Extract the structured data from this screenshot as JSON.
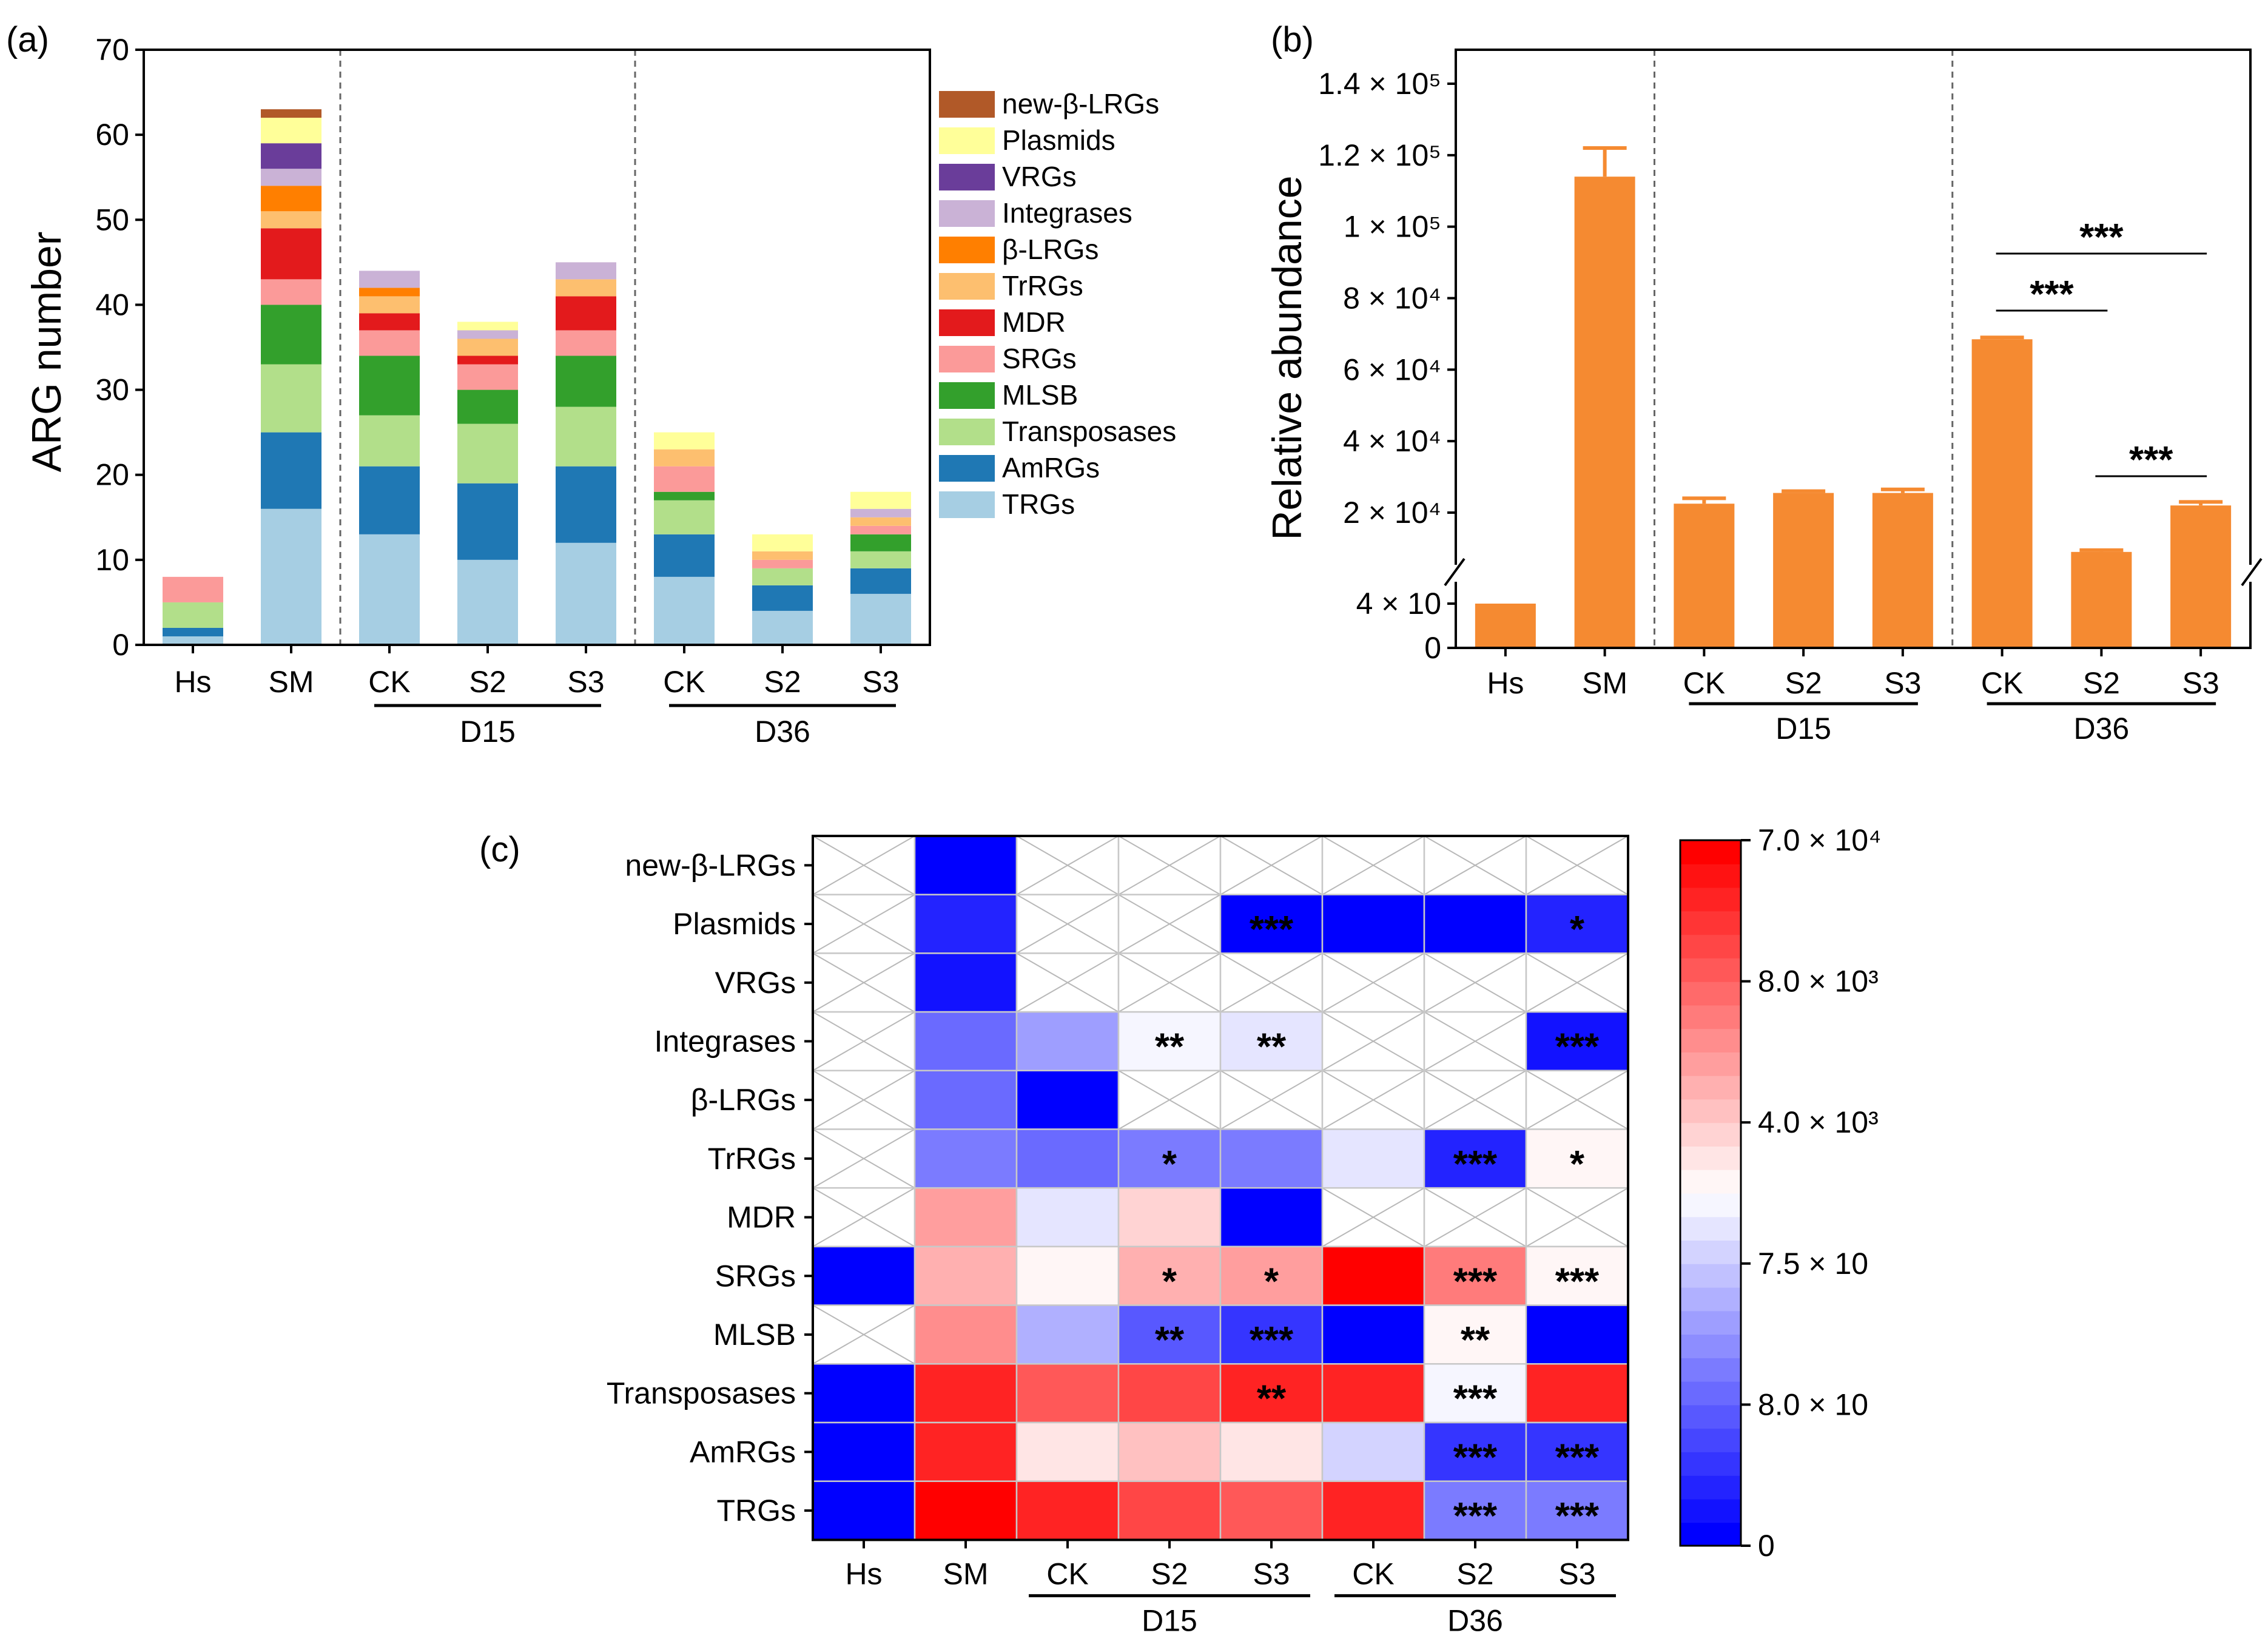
{
  "chart_data": [
    {
      "panel": "(a)",
      "type": "bar",
      "stacked": true,
      "ylabel": "ARG number",
      "ylim": [
        0,
        70
      ],
      "yticks": [
        0,
        10,
        20,
        30,
        40,
        50,
        60,
        70
      ],
      "categories": [
        "Hs",
        "SM",
        "CK",
        "S2",
        "S3",
        "CK",
        "S2",
        "S3"
      ],
      "groups": [
        {
          "label": "D15",
          "members": [
            2,
            4
          ]
        },
        {
          "label": "D36",
          "members": [
            5,
            7
          ]
        }
      ],
      "series": [
        {
          "name": "TRGs",
          "color": "#a6cee3",
          "values": [
            1,
            16,
            13,
            10,
            12,
            8,
            4,
            6
          ]
        },
        {
          "name": "AmRGs",
          "color": "#1f78b4",
          "values": [
            1,
            9,
            8,
            9,
            9,
            5,
            3,
            3
          ]
        },
        {
          "name": "Transposases",
          "color": "#b2df8a",
          "values": [
            3,
            8,
            6,
            7,
            7,
            4,
            2,
            2
          ]
        },
        {
          "name": "MLSB",
          "color": "#33a02c",
          "values": [
            0,
            7,
            7,
            4,
            6,
            1,
            0,
            2
          ]
        },
        {
          "name": "SRGs",
          "color": "#fb9a99",
          "values": [
            3,
            3,
            3,
            3,
            3,
            3,
            1,
            1
          ]
        },
        {
          "name": "MDR",
          "color": "#e31a1c",
          "values": [
            0,
            6,
            2,
            1,
            4,
            0,
            0,
            0
          ]
        },
        {
          "name": "TrRGs",
          "color": "#fdbf6f",
          "values": [
            0,
            2,
            2,
            2,
            2,
            2,
            1,
            1
          ]
        },
        {
          "name": "β-LRGs",
          "color": "#ff7f00",
          "values": [
            0,
            3,
            1,
            0,
            0,
            0,
            0,
            0
          ]
        },
        {
          "name": "Integrases",
          "color": "#cab2d6",
          "values": [
            0,
            2,
            2,
            1,
            2,
            0,
            0,
            1
          ]
        },
        {
          "name": "VRGs",
          "color": "#6a3d9a",
          "values": [
            0,
            3,
            0,
            0,
            0,
            0,
            0,
            0
          ]
        },
        {
          "name": "Plasmids",
          "color": "#ffff99",
          "values": [
            0,
            3,
            0,
            1,
            0,
            2,
            2,
            2
          ]
        },
        {
          "name": "new-β-LRGs",
          "color": "#b15928",
          "values": [
            0,
            1,
            0,
            0,
            0,
            0,
            0,
            0
          ]
        }
      ],
      "legend_order": [
        "new-β-LRGs",
        "Plasmids",
        "VRGs",
        "Integrases",
        "β-LRGs",
        "TrRGs",
        "MDR",
        "SRGs",
        "MLSB",
        "Transposases",
        "AmRGs",
        "TRGs"
      ],
      "legend_placement": "right"
    },
    {
      "panel": "(b)",
      "type": "bar",
      "ylabel": "Relative abundance",
      "bar_color": "#f58a31",
      "axis_break": true,
      "yticks": [
        {
          "value": 0,
          "label": "0"
        },
        {
          "value": 40,
          "label": "4 × 10"
        },
        {
          "value": 20000,
          "label": "2 × 10⁴"
        },
        {
          "value": 40000,
          "label": "4 × 10⁴"
        },
        {
          "value": 60000,
          "label": "6 × 10⁴"
        },
        {
          "value": 80000,
          "label": "8 × 10⁴"
        },
        {
          "value": 100000,
          "label": "1 × 10⁵"
        },
        {
          "value": 120000,
          "label": "1.2 × 10⁵"
        },
        {
          "value": 140000,
          "label": "1.4 × 10⁵"
        }
      ],
      "categories": [
        "Hs",
        "SM",
        "CK",
        "S2",
        "S3",
        "CK",
        "S2",
        "S3"
      ],
      "values": [
        40,
        114000,
        22500,
        25500,
        25500,
        68500,
        9000,
        22000
      ],
      "errors": [
        0,
        8000,
        1500,
        500,
        1000,
        500,
        500,
        1000
      ],
      "groups": [
        {
          "label": "D15",
          "members": [
            2,
            4
          ]
        },
        {
          "label": "D36",
          "members": [
            5,
            7
          ]
        }
      ],
      "significance": [
        {
          "from": 5,
          "to": 7,
          "label": "***"
        },
        {
          "from": 5,
          "to": 6,
          "label": "***"
        },
        {
          "from": 6,
          "to": 7,
          "label": "***"
        }
      ]
    },
    {
      "panel": "(c)",
      "type": "heatmap",
      "rows": [
        "new-β-LRGs",
        "Plasmids",
        "VRGs",
        "Integrases",
        "β-LRGs",
        "TrRGs",
        "MDR",
        "SRGs",
        "MLSB",
        "Transposases",
        "AmRGs",
        "TRGs"
      ],
      "columns": [
        "Hs",
        "SM",
        "CK",
        "S2",
        "S3",
        "CK",
        "S2",
        "S3"
      ],
      "groups": [
        {
          "label": "D15",
          "members": [
            2,
            4
          ]
        },
        {
          "label": "D36",
          "members": [
            5,
            7
          ]
        }
      ],
      "colorbar": {
        "ticks": [
          {
            "value": 0,
            "label": "0"
          },
          {
            "value": 0.2,
            "label": "8.0 × 10"
          },
          {
            "value": 0.4,
            "label": "7.5 × 10"
          },
          {
            "value": 0.6,
            "label": "4.0 × 10³"
          },
          {
            "value": 0.8,
            "label": "8.0 × 10³"
          },
          {
            "value": 1.0,
            "label": "7.0 × 10⁴"
          }
        ],
        "low_color": "#0000ff",
        "mid_color": "#ffffff",
        "high_color": "#ff0000",
        "steps": 30
      },
      "note": "values are normalized color-scale levels (0 = bottom of color bar, 1 = top); null = not detected (crossed cell)",
      "values": [
        [
          null,
          0.0,
          null,
          null,
          null,
          null,
          null,
          null
        ],
        [
          null,
          0.07,
          null,
          null,
          0.03,
          0.03,
          0.03,
          0.08
        ],
        [
          null,
          0.05,
          null,
          null,
          null,
          null,
          null,
          null
        ],
        [
          null,
          0.22,
          0.3,
          0.49,
          0.45,
          null,
          null,
          0.05
        ],
        [
          null,
          0.23,
          0.0,
          null,
          null,
          null,
          null,
          null
        ],
        [
          null,
          0.25,
          0.2,
          0.24,
          0.24,
          0.44,
          0.07,
          0.5
        ],
        [
          null,
          0.68,
          0.44,
          0.58,
          0.02,
          null,
          null,
          null
        ],
        [
          0.03,
          0.66,
          0.53,
          0.66,
          0.68,
          0.97,
          0.74,
          0.5
        ],
        [
          null,
          0.72,
          0.35,
          0.18,
          0.1,
          0.01,
          0.5,
          0.0
        ],
        [
          0.02,
          0.92,
          0.83,
          0.85,
          0.93,
          0.92,
          0.47,
          0.93
        ],
        [
          0.02,
          0.92,
          0.55,
          0.6,
          0.56,
          0.42,
          0.1,
          0.1
        ],
        [
          0.03,
          1.0,
          0.9,
          0.85,
          0.8,
          0.92,
          0.25,
          0.25
        ]
      ],
      "significance": [
        {
          "row": 1,
          "col": 4,
          "label": "***"
        },
        {
          "row": 1,
          "col": 7,
          "label": "*"
        },
        {
          "row": 3,
          "col": 3,
          "label": "**"
        },
        {
          "row": 3,
          "col": 4,
          "label": "**"
        },
        {
          "row": 3,
          "col": 7,
          "label": "***"
        },
        {
          "row": 5,
          "col": 3,
          "label": "*"
        },
        {
          "row": 5,
          "col": 6,
          "label": "***"
        },
        {
          "row": 5,
          "col": 7,
          "label": "*"
        },
        {
          "row": 7,
          "col": 3,
          "label": "*"
        },
        {
          "row": 7,
          "col": 4,
          "label": "*"
        },
        {
          "row": 7,
          "col": 6,
          "label": "***"
        },
        {
          "row": 7,
          "col": 7,
          "label": "***"
        },
        {
          "row": 8,
          "col": 3,
          "label": "**"
        },
        {
          "row": 8,
          "col": 4,
          "label": "***"
        },
        {
          "row": 8,
          "col": 6,
          "label": "**"
        },
        {
          "row": 9,
          "col": 4,
          "label": "**"
        },
        {
          "row": 9,
          "col": 6,
          "label": "***"
        },
        {
          "row": 10,
          "col": 6,
          "label": "***"
        },
        {
          "row": 10,
          "col": 7,
          "label": "***"
        },
        {
          "row": 11,
          "col": 6,
          "label": "***"
        },
        {
          "row": 11,
          "col": 7,
          "label": "***"
        }
      ]
    }
  ]
}
